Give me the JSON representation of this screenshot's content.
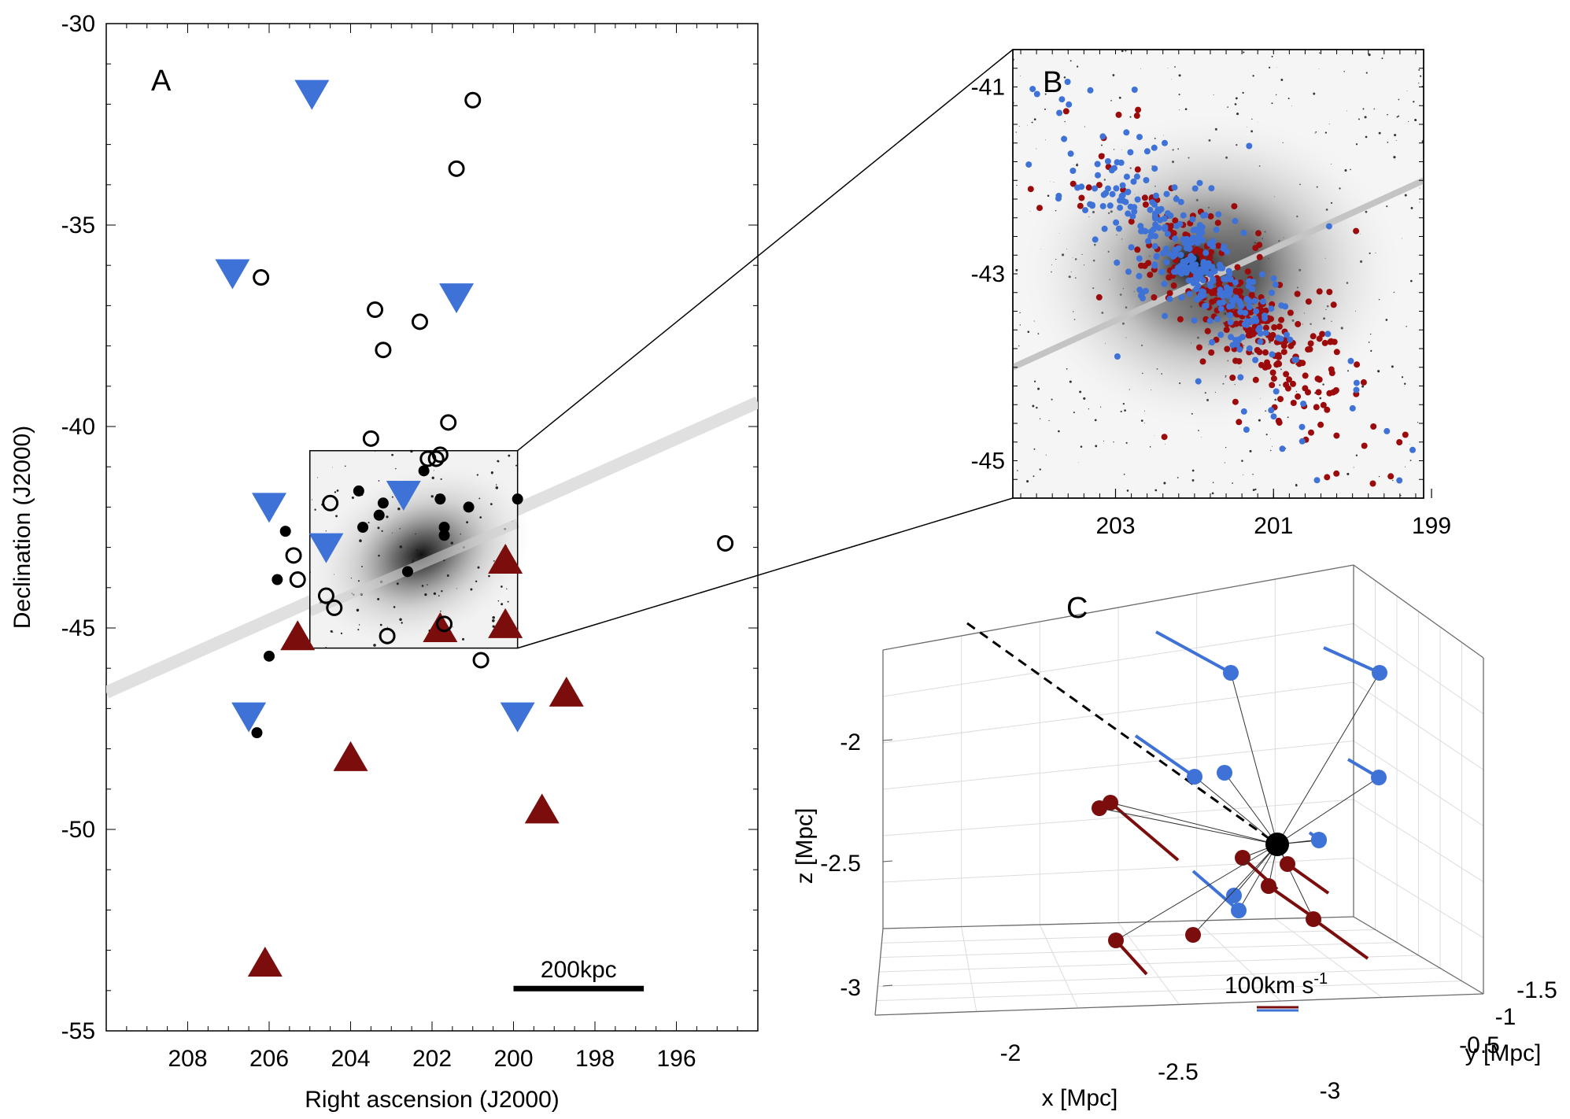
{
  "chart_data": [
    {
      "panel": "A",
      "type": "scatter",
      "panel_label": "A",
      "xlabel": "Right ascension (J2000)",
      "ylabel": "Declination (J2000)",
      "xlim": [
        210,
        194
      ],
      "ylim": [
        -55,
        -30
      ],
      "xticks": [
        208,
        206,
        204,
        202,
        200,
        198,
        196
      ],
      "yticks": [
        -30,
        -35,
        -40,
        -45,
        -50,
        -55
      ],
      "scale_bar_label": "200kpc",
      "scale_bar_ra": [
        200.0,
        196.8
      ],
      "scale_bar_dec": -53.95,
      "grey_band_line": [
        [
          210,
          -46.6
        ],
        [
          194,
          -39.4
        ]
      ],
      "inset_box": {
        "ra": [
          205.0,
          199.9
        ],
        "dec": [
          -40.6,
          -45.5
        ]
      },
      "series": [
        {
          "name": "blue-down-triangles",
          "marker": "triangle-down",
          "color": "#3f72d6",
          "points": [
            [
              204.95,
              -31.75
            ],
            [
              206.9,
              -36.2
            ],
            [
              201.4,
              -36.8
            ],
            [
              206.0,
              -42.0
            ],
            [
              202.7,
              -41.7
            ],
            [
              204.6,
              -43.0
            ],
            [
              206.5,
              -47.2
            ],
            [
              199.9,
              -47.2
            ]
          ]
        },
        {
          "name": "red-up-triangles",
          "marker": "triangle-up",
          "color": "#7b0d0d",
          "points": [
            [
              200.2,
              -43.3
            ],
            [
              205.3,
              -45.2
            ],
            [
              201.8,
              -45.0
            ],
            [
              200.2,
              -44.9
            ],
            [
              198.7,
              -46.6
            ],
            [
              204.0,
              -48.2
            ],
            [
              199.3,
              -49.5
            ],
            [
              206.1,
              -53.3
            ]
          ]
        },
        {
          "name": "filled-circles",
          "marker": "circle-filled",
          "color": "#000000",
          "points": [
            [
              205.6,
              -42.6
            ],
            [
              205.8,
              -43.8
            ],
            [
              203.8,
              -41.6
            ],
            [
              203.2,
              -41.9
            ],
            [
              203.3,
              -42.2
            ],
            [
              203.7,
              -42.5
            ],
            [
              202.2,
              -41.1
            ],
            [
              201.8,
              -41.8
            ],
            [
              201.7,
              -42.5
            ],
            [
              201.7,
              -42.7
            ],
            [
              201.1,
              -42.0
            ],
            [
              199.9,
              -41.8
            ],
            [
              202.6,
              -43.6
            ],
            [
              206.0,
              -45.7
            ],
            [
              206.3,
              -47.6
            ]
          ]
        },
        {
          "name": "open-circles",
          "marker": "circle-open",
          "color": "#000000",
          "points": [
            [
              201.0,
              -31.9
            ],
            [
              201.4,
              -33.6
            ],
            [
              206.2,
              -36.3
            ],
            [
              203.4,
              -37.1
            ],
            [
              202.3,
              -37.4
            ],
            [
              203.2,
              -38.1
            ],
            [
              201.6,
              -39.9
            ],
            [
              203.5,
              -40.3
            ],
            [
              201.8,
              -40.7
            ],
            [
              201.9,
              -40.8
            ],
            [
              202.1,
              -40.8
            ],
            [
              204.5,
              -41.9
            ],
            [
              205.4,
              -43.2
            ],
            [
              205.3,
              -43.8
            ],
            [
              204.6,
              -44.2
            ],
            [
              204.4,
              -44.5
            ],
            [
              201.7,
              -44.9
            ],
            [
              203.1,
              -45.2
            ],
            [
              200.8,
              -45.8
            ],
            [
              194.8,
              -42.9
            ]
          ]
        }
      ]
    },
    {
      "panel": "B",
      "type": "scatter",
      "panel_label": "B",
      "xlim": [
        204.3,
        199.1
      ],
      "ylim": [
        -45.4,
        -40.6
      ],
      "xticks": [
        203,
        201,
        199
      ],
      "yticks": [
        -41,
        -43,
        -45
      ],
      "grey_band_line": [
        [
          204.3,
          -44.0
        ],
        [
          199.1,
          -42.0
        ]
      ],
      "series": [
        {
          "name": "blue-stars",
          "color": "#3f72d6",
          "center": [
            202.0,
            -42.9
          ],
          "count": 360
        },
        {
          "name": "red-stars",
          "color": "#9b0b0b",
          "center": [
            201.4,
            -43.4
          ],
          "count": 330
        }
      ]
    },
    {
      "panel": "C",
      "type": "3d-scatter",
      "panel_label": "C",
      "xlabel": "x [Mpc]",
      "ylabel": "y [Mpc]",
      "zlabel": "z [Mpc]",
      "xticks": [
        -2,
        -2.5,
        -3
      ],
      "yticks": [
        -1.5,
        -1,
        -0.5
      ],
      "zticks": [
        -2,
        -2.5,
        -3
      ],
      "velocity_scale_label": "100km s",
      "velocity_scale_exponent": "-1",
      "center_galaxy": "black",
      "series": [
        {
          "name": "approaching",
          "color": "#3f72d6",
          "count": 9
        },
        {
          "name": "receding",
          "color": "#7b0d0d",
          "count": 8
        }
      ]
    }
  ]
}
